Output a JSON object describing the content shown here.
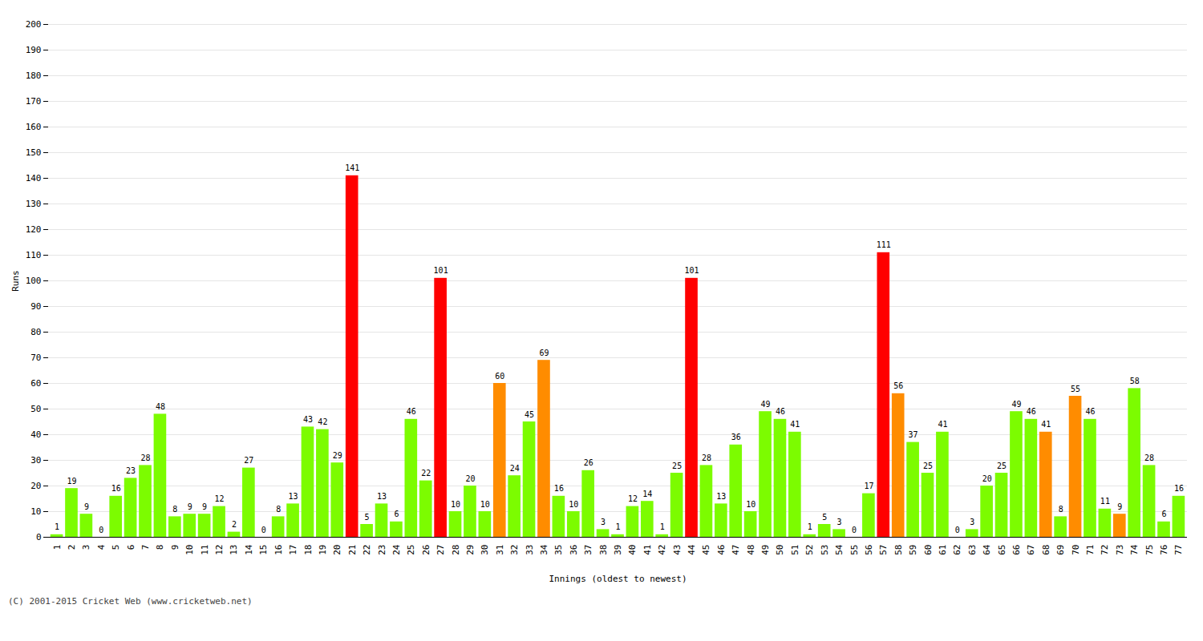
{
  "chart_data": {
    "type": "bar",
    "xlabel": "Innings (oldest to newest)",
    "ylabel": "Runs",
    "categories": [
      1,
      2,
      3,
      4,
      5,
      6,
      7,
      8,
      9,
      10,
      11,
      12,
      13,
      14,
      15,
      16,
      17,
      18,
      19,
      20,
      21,
      22,
      23,
      24,
      25,
      26,
      27,
      28,
      29,
      30,
      31,
      32,
      33,
      34,
      35,
      36,
      37,
      38,
      39,
      40,
      41,
      42,
      43,
      44,
      45,
      46,
      47,
      48,
      49,
      50,
      51,
      52,
      53,
      54,
      55,
      56,
      57,
      58,
      59,
      60,
      61,
      62,
      63,
      64,
      65,
      66,
      67,
      68,
      69,
      70,
      71,
      72,
      73,
      74,
      75,
      76,
      77
    ],
    "values": [
      1,
      19,
      9,
      0,
      16,
      23,
      28,
      48,
      8,
      9,
      9,
      12,
      2,
      27,
      0,
      8,
      13,
      43,
      42,
      29,
      141,
      5,
      13,
      6,
      46,
      22,
      101,
      10,
      20,
      10,
      60,
      24,
      45,
      69,
      16,
      10,
      26,
      3,
      1,
      12,
      14,
      1,
      25,
      101,
      28,
      13,
      36,
      10,
      49,
      46,
      41,
      1,
      5,
      3,
      0,
      17,
      111,
      56,
      37,
      25,
      41,
      0,
      3,
      20,
      25,
      49,
      46,
      41,
      8,
      55,
      46,
      11,
      9,
      58,
      28,
      6,
      16
    ],
    "colors": [
      "#7cfc00",
      "#7cfc00",
      "#7cfc00",
      "#7cfc00",
      "#7cfc00",
      "#7cfc00",
      "#7cfc00",
      "#7cfc00",
      "#7cfc00",
      "#7cfc00",
      "#7cfc00",
      "#7cfc00",
      "#7cfc00",
      "#7cfc00",
      "#7cfc00",
      "#7cfc00",
      "#7cfc00",
      "#7cfc00",
      "#7cfc00",
      "#7cfc00",
      "#ff0000",
      "#7cfc00",
      "#7cfc00",
      "#7cfc00",
      "#7cfc00",
      "#7cfc00",
      "#ff0000",
      "#7cfc00",
      "#7cfc00",
      "#7cfc00",
      "#ff8c00",
      "#7cfc00",
      "#7cfc00",
      "#ff8c00",
      "#7cfc00",
      "#7cfc00",
      "#7cfc00",
      "#7cfc00",
      "#7cfc00",
      "#7cfc00",
      "#7cfc00",
      "#7cfc00",
      "#7cfc00",
      "#ff0000",
      "#7cfc00",
      "#7cfc00",
      "#7cfc00",
      "#7cfc00",
      "#7cfc00",
      "#7cfc00",
      "#7cfc00",
      "#7cfc00",
      "#7cfc00",
      "#7cfc00",
      "#7cfc00",
      "#7cfc00",
      "#ff0000",
      "#ff8c00",
      "#7cfc00",
      "#7cfc00",
      "#7cfc00",
      "#7cfc00",
      "#7cfc00",
      "#7cfc00",
      "#7cfc00",
      "#7cfc00",
      "#7cfc00",
      "#ff8c00",
      "#7cfc00",
      "#ff8c00",
      "#7cfc00",
      "#7cfc00",
      "#ff8c00",
      "#7cfc00",
      "#7cfc00",
      "#7cfc00",
      "#7cfc00"
    ],
    "ylim": [
      0,
      200
    ],
    "yticks": [
      0,
      10,
      20,
      30,
      40,
      50,
      60,
      70,
      80,
      90,
      100,
      110,
      120,
      130,
      140,
      150,
      160,
      170,
      180,
      190,
      200
    ],
    "grid": true,
    "data_labels": true,
    "annotations": [
      "(C) 2001-2015 Cricket Web (www.cricketweb.net)"
    ]
  }
}
